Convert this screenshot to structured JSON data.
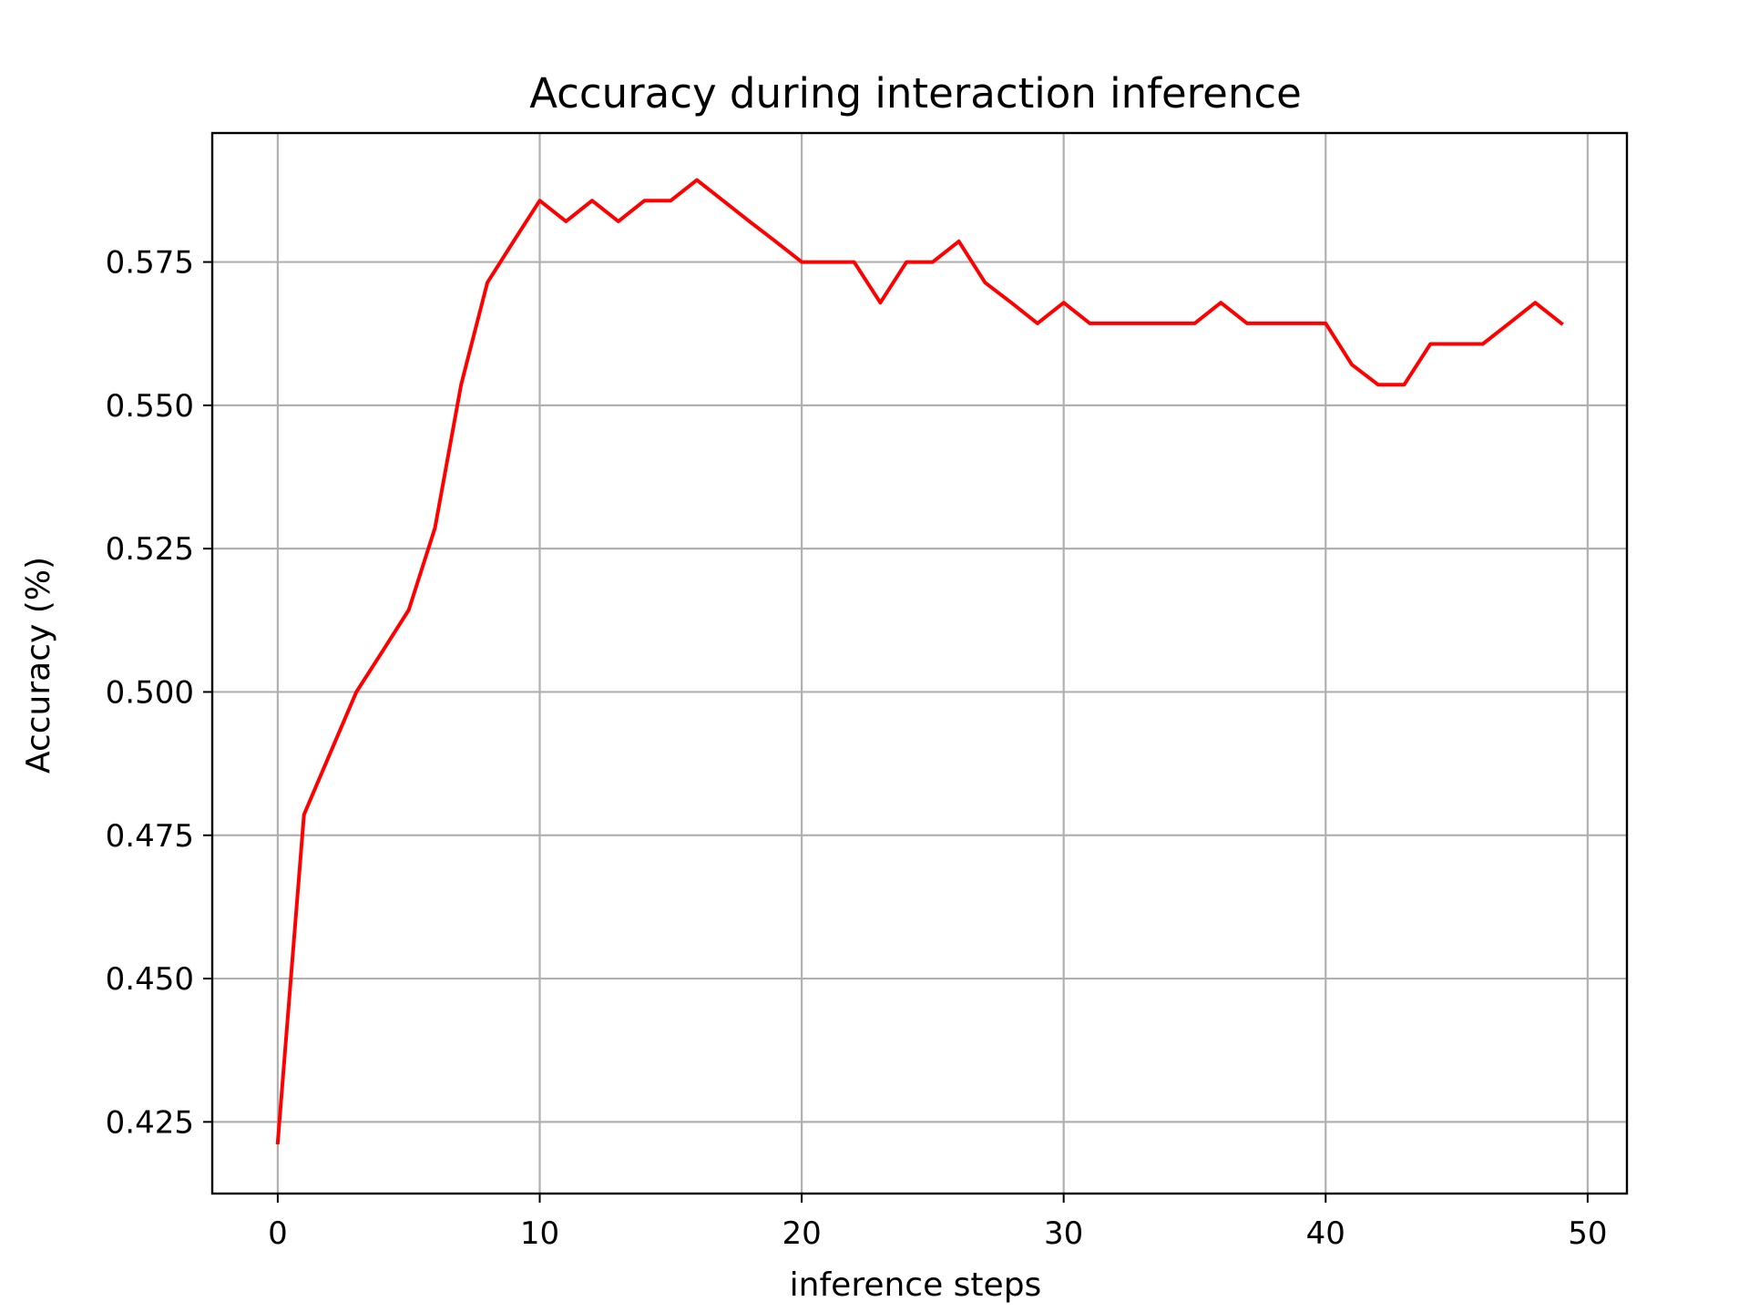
{
  "chart_data": {
    "type": "line",
    "title": "Accuracy during interaction inference",
    "xlabel": "inference steps",
    "ylabel": "Accuracy (%)",
    "xlim": [
      -2.5,
      51.5
    ],
    "ylim": [
      0.4125,
      0.5975
    ],
    "xticks": [
      0,
      10,
      20,
      30,
      40,
      50
    ],
    "yticks": [
      0.425,
      0.45,
      0.475,
      0.5,
      0.525,
      0.55,
      0.575
    ],
    "ytick_labels": [
      "0.425",
      "0.450",
      "0.475",
      "0.500",
      "0.525",
      "0.550",
      "0.575"
    ],
    "grid": true,
    "series": [
      {
        "color": "#ff0000",
        "x": [
          0,
          1,
          2,
          3,
          4,
          5,
          6,
          7,
          8,
          9,
          10,
          11,
          12,
          13,
          14,
          15,
          16,
          17,
          18,
          19,
          20,
          21,
          22,
          23,
          24,
          25,
          26,
          27,
          28,
          29,
          30,
          31,
          32,
          33,
          34,
          35,
          36,
          37,
          38,
          39,
          40,
          41,
          42,
          43,
          44,
          45,
          46,
          47,
          48,
          49
        ],
        "y": [
          0.4214,
          0.4786,
          0.4893,
          0.5,
          0.5071,
          0.5143,
          0.5286,
          0.5536,
          0.5714,
          0.5786,
          0.5857,
          0.5821,
          0.5857,
          0.5821,
          0.5857,
          0.5857,
          0.5893,
          0.5857,
          0.5821,
          0.5786,
          0.575,
          0.575,
          0.575,
          0.5679,
          0.575,
          0.575,
          0.5786,
          0.5714,
          0.5679,
          0.5643,
          0.5679,
          0.5643,
          0.5643,
          0.5643,
          0.5643,
          0.5643,
          0.5679,
          0.5643,
          0.5643,
          0.5643,
          0.5643,
          0.5571,
          0.5536,
          0.5536,
          0.5607,
          0.5607,
          0.5607,
          0.5643,
          0.5679,
          0.5643
        ]
      }
    ]
  }
}
